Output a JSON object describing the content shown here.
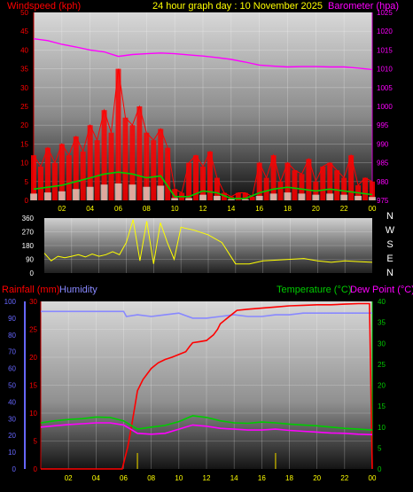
{
  "header": {
    "windspeed_label": "Windspeed (kph)",
    "title": "24 hour graph day : 10 November 2025",
    "barometer_label": "Barometer (hpa)"
  },
  "colors": {
    "background": "#000000",
    "windspeed": "#ff0000",
    "wind_avg": "#00cc00",
    "wind_low": "#e0f0e0",
    "barometer": "#ff00ff",
    "direction": "#ffff00",
    "rainfall": "#ff0000",
    "humidity": "#8888ff",
    "temperature": "#00cc00",
    "dewpoint": "#ff00ff",
    "rain_rate_bars": "#b0a000",
    "left_axis_blue": "#6666ff",
    "right_axis_green": "#00cc00"
  },
  "chart_data": [
    {
      "type": "line",
      "name": "wind-barometer",
      "title": "24 hour graph day : 10 November 2025",
      "ylabel": "Windspeed (kph)",
      "y2label": "Barometer (hpa)",
      "x_ticks": [
        "02",
        "04",
        "06",
        "08",
        "10",
        "12",
        "14",
        "16",
        "18",
        "20",
        "22",
        "00"
      ],
      "y_ticks": [
        "0",
        "5",
        "10",
        "15",
        "20",
        "25",
        "30",
        "35",
        "40",
        "45",
        "50"
      ],
      "y2_ticks": [
        "975",
        "980",
        "985",
        "990",
        "995",
        "1000",
        "1005",
        "1010",
        "1015",
        "1020",
        "1025"
      ],
      "ylim": [
        0,
        50
      ],
      "y2lim": [
        975,
        1025
      ],
      "xlim": [
        0,
        24
      ],
      "grid": true,
      "series": [
        {
          "name": "Windspeed (kph)",
          "axis": "left",
          "x": [
            0,
            0.5,
            1,
            1.5,
            2,
            2.5,
            3,
            3.5,
            4,
            4.5,
            5,
            5.5,
            6,
            6.5,
            7,
            7.5,
            8,
            8.5,
            9,
            9.5,
            10,
            10.5,
            11,
            11.5,
            12,
            12.5,
            13,
            13.5,
            14,
            14.5,
            15,
            15.5,
            16,
            16.5,
            17,
            17.5,
            18,
            18.5,
            19,
            19.5,
            20,
            20.5,
            21,
            21.5,
            22,
            22.5,
            23,
            23.5,
            24
          ],
          "y": [
            12,
            9,
            14,
            10,
            15,
            12,
            17,
            13,
            20,
            16,
            24,
            18,
            35,
            22,
            20,
            25,
            18,
            16,
            19,
            14,
            3,
            2,
            10,
            12,
            9,
            13,
            6,
            2,
            1,
            2,
            2,
            1,
            10,
            6,
            12,
            5,
            10,
            8,
            7,
            11,
            5,
            9,
            10,
            8,
            6,
            12,
            4,
            6,
            5
          ]
        },
        {
          "name": "Wind average",
          "axis": "left",
          "x": [
            0,
            1,
            2,
            3,
            4,
            5,
            6,
            7,
            8,
            9,
            10,
            11,
            12,
            13,
            14,
            15,
            16,
            17,
            18,
            19,
            20,
            21,
            22,
            23,
            24
          ],
          "y": [
            3,
            3.5,
            4,
            5,
            6,
            7,
            7.5,
            7,
            6,
            6.5,
            1,
            1,
            2.5,
            2,
            0.5,
            0.5,
            2,
            3,
            3.5,
            3,
            2.5,
            3,
            2.5,
            2,
            1.5
          ]
        },
        {
          "name": "Barometer (hpa)",
          "axis": "right",
          "x": [
            0,
            1,
            2,
            3,
            4,
            5,
            6,
            7,
            8,
            9,
            10,
            11,
            12,
            13,
            14,
            15,
            16,
            17,
            18,
            19,
            20,
            21,
            22,
            23,
            24
          ],
          "y": [
            1018,
            1017.5,
            1016.5,
            1015.8,
            1015,
            1014.5,
            1013.3,
            1013.8,
            1014,
            1014.2,
            1014,
            1013.7,
            1013.4,
            1013,
            1012.5,
            1011.8,
            1011,
            1010.7,
            1010.5,
            1010.6,
            1010.6,
            1010.5,
            1010.5,
            1010.2,
            1009.8
          ]
        }
      ]
    },
    {
      "type": "line",
      "name": "wind-direction",
      "y_ticks": [
        "0",
        "90",
        "180",
        "270",
        "360"
      ],
      "ylim": [
        0,
        360
      ],
      "xlim": [
        0,
        24
      ],
      "right_labels": [
        "N",
        "W",
        "S",
        "E",
        "N"
      ],
      "grid": true,
      "series": [
        {
          "name": "Wind direction",
          "x": [
            0,
            0.5,
            1,
            1.5,
            2,
            2.5,
            3,
            3.5,
            4,
            4.5,
            5,
            5.5,
            6,
            6.5,
            7,
            7.5,
            8,
            8.5,
            9,
            9.5,
            10,
            11,
            12,
            13,
            14,
            15,
            16,
            17,
            18,
            19,
            20,
            21,
            22,
            23,
            24
          ],
          "y": [
            130,
            80,
            110,
            100,
            110,
            120,
            105,
            125,
            110,
            120,
            140,
            120,
            200,
            350,
            80,
            340,
            60,
            330,
            200,
            90,
            300,
            280,
            250,
            200,
            60,
            60,
            80,
            85,
            90,
            95,
            80,
            70,
            80,
            75,
            70
          ]
        }
      ]
    },
    {
      "type": "line",
      "name": "rain-humidity-temperature",
      "left_label": "Rainfall (mm)",
      "left_label2": "Humidity",
      "right_label": "Temperature (°C)",
      "right_label2": "Dew Point (°C)",
      "x_ticks": [
        "02",
        "04",
        "06",
        "08",
        "10",
        "12",
        "14",
        "16",
        "18",
        "20",
        "22",
        "00"
      ],
      "humidity_ticks": [
        "0",
        "10",
        "20",
        "30",
        "40",
        "50",
        "60",
        "70",
        "80",
        "90",
        "100"
      ],
      "rain_ticks": [
        "0",
        "5",
        "10",
        "15",
        "20",
        "25",
        "30"
      ],
      "temp_ticks": [
        "0",
        "5",
        "10",
        "15",
        "20",
        "25",
        "30",
        "35",
        "40"
      ],
      "rainlim": [
        0,
        30
      ],
      "templim": [
        0,
        40
      ],
      "humlim": [
        0,
        100
      ],
      "xlim": [
        0,
        24
      ],
      "grid": true,
      "series": [
        {
          "name": "Humidity",
          "axis": "humidity",
          "x": [
            0,
            1,
            2,
            3,
            4,
            5,
            6,
            6.2,
            7,
            8,
            9,
            10,
            11,
            12,
            13,
            14,
            15,
            16,
            17,
            18,
            19,
            20,
            21,
            22,
            23,
            24
          ],
          "y": [
            94,
            94,
            94,
            94,
            94,
            94,
            94,
            91,
            92,
            91,
            92,
            93,
            90,
            90,
            91,
            92,
            91,
            91,
            92,
            92,
            93,
            93,
            93,
            93,
            93,
            93
          ]
        },
        {
          "name": "Rainfall (mm)",
          "axis": "rain",
          "x": [
            0,
            1,
            2,
            3,
            4,
            5,
            5.9,
            6,
            6.3,
            6.6,
            7,
            7.4,
            7.7,
            8,
            8.5,
            9,
            9.5,
            10,
            10.5,
            10.8,
            11,
            11.5,
            12,
            12.5,
            12.8,
            13,
            13.5,
            14,
            14.2,
            15,
            16,
            17,
            18,
            19,
            20,
            21,
            22,
            23,
            23.8,
            24
          ],
          "y": [
            0,
            0,
            0,
            0,
            0,
            0,
            0,
            1,
            4,
            8,
            14,
            16,
            17,
            18,
            19,
            19.6,
            20,
            20.5,
            21,
            22,
            22.6,
            22.8,
            23,
            24,
            25,
            26,
            27,
            28,
            28.4,
            28.6,
            28.8,
            29,
            29.2,
            29.3,
            29.4,
            29.4,
            29.5,
            29.6,
            29.6,
            0
          ]
        },
        {
          "name": "Temperature (°C)",
          "axis": "temp",
          "x": [
            0,
            1,
            2,
            3,
            4,
            5,
            6,
            6.5,
            7,
            8,
            9,
            10,
            11,
            12,
            13,
            14,
            15,
            16,
            17,
            18,
            19,
            20,
            21,
            22,
            23,
            24
          ],
          "y": [
            11,
            11.5,
            11.8,
            12,
            12.4,
            12.3,
            11.5,
            10.5,
            9.5,
            10,
            10.4,
            11.3,
            12.7,
            12.3,
            11.5,
            11,
            10.9,
            11.2,
            11,
            10.7,
            10.5,
            10.3,
            10,
            9.7,
            9.5,
            9.3
          ]
        },
        {
          "name": "Dew Point (°C)",
          "axis": "temp",
          "x": [
            0,
            1,
            2,
            3,
            4,
            5,
            6,
            6.5,
            7,
            8,
            9,
            10,
            11,
            12,
            13,
            14,
            15,
            16,
            17,
            18,
            19,
            20,
            21,
            22,
            23,
            24
          ],
          "y": [
            10,
            10.3,
            10.6,
            10.8,
            11,
            11,
            10.5,
            9.5,
            8.5,
            8.3,
            8.5,
            9.5,
            10.5,
            10.2,
            9.7,
            9.5,
            9.3,
            9.3,
            9.5,
            9.2,
            9,
            8.8,
            8.6,
            8.5,
            8.3,
            8.2
          ]
        }
      ],
      "rain_rate_spikes_x": [
        7,
        17
      ]
    }
  ]
}
